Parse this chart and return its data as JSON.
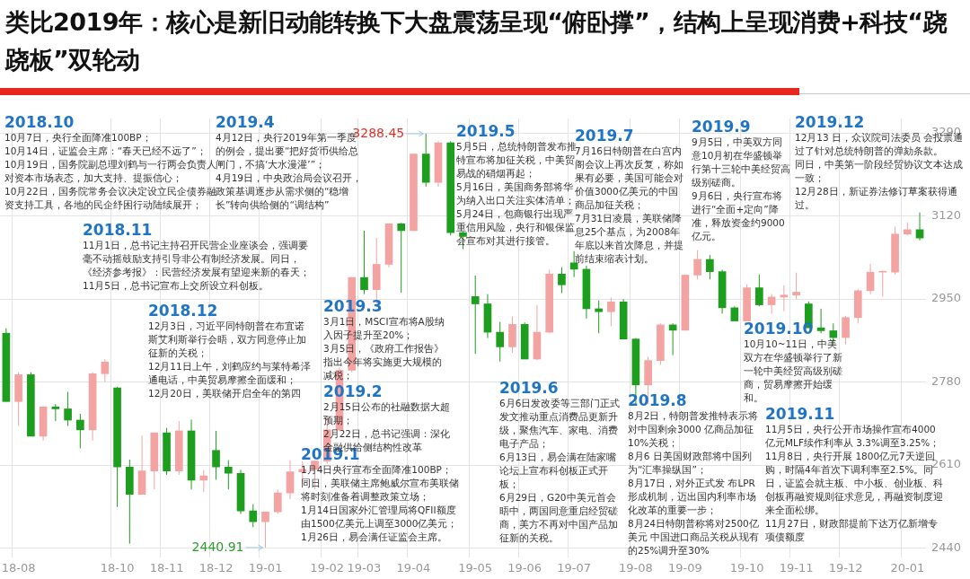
{
  "chart_data": {
    "type": "candlestick",
    "title": "类比2019年：核心是新旧动能转换下大盘震荡呈现“俯卧撑”，结构上呈现消费+科技“跷跷板”双轮动",
    "categories": [
      null,
      "18-08",
      null,
      null,
      null,
      null,
      null,
      null,
      null,
      "18-10",
      null,
      null,
      null,
      "18-11",
      null,
      null,
      null,
      "18-12",
      null,
      null,
      null,
      "19-01",
      null,
      null,
      null,
      null,
      "19-02",
      null,
      null,
      "19-03",
      null,
      null,
      null,
      "19-04",
      null,
      null,
      null,
      null,
      "19-05",
      null,
      null,
      null,
      "19-06",
      null,
      null,
      null,
      "19-07",
      null,
      null,
      null,
      null,
      "19-08",
      null,
      null,
      null,
      "19-09",
      null,
      null,
      null,
      null,
      "19-10",
      null,
      null,
      null,
      "19-11",
      null,
      null,
      null,
      "19-12",
      null,
      null,
      null,
      null,
      "20-01",
      null
    ],
    "ohlc": [
      [
        2880,
        2890,
        2740,
        2740
      ],
      [
        2740,
        2800,
        2690,
        2795
      ],
      [
        2795,
        2800,
        2669,
        2669
      ],
      [
        2669,
        2730,
        2660,
        2729
      ],
      [
        2729,
        2735,
        2700,
        2725
      ],
      [
        2725,
        2760,
        2690,
        2702
      ],
      [
        2702,
        2715,
        2644,
        2682
      ],
      [
        2682,
        2800,
        2660,
        2797
      ],
      [
        2797,
        2827,
        2780,
        2821
      ],
      [
        2768,
        2770,
        2524,
        2606
      ],
      [
        2606,
        2621,
        2449,
        2550
      ],
      [
        2550,
        2670,
        2550,
        2598
      ],
      [
        2598,
        2676,
        2560,
        2676
      ],
      [
        2676,
        2686,
        2590,
        2598
      ],
      [
        2598,
        2700,
        2590,
        2680
      ],
      [
        2680,
        2703,
        2560,
        2579
      ],
      [
        2579,
        2600,
        2555,
        2588
      ],
      [
        2640,
        2680,
        2580,
        2606
      ],
      [
        2606,
        2620,
        2560,
        2593
      ],
      [
        2593,
        2600,
        2510,
        2516
      ],
      [
        2516,
        2530,
        2483,
        2494
      ],
      [
        2494,
        2515,
        2440.91,
        2514
      ],
      [
        2514,
        2560,
        2510,
        2553
      ],
      [
        2553,
        2620,
        2540,
        2596
      ],
      [
        2596,
        2618,
        2570,
        2601
      ],
      [
        2601,
        2620,
        2560,
        2618
      ],
      [
        2618,
        2711,
        2613,
        2682
      ],
      [
        2682,
        2810,
        2680,
        2804
      ],
      [
        2804,
        2995,
        2800,
        2994
      ],
      [
        2994,
        3090,
        2960,
        2969
      ],
      [
        2969,
        3075,
        2940,
        3021
      ],
      [
        3021,
        3105,
        3015,
        3104
      ],
      [
        3104,
        3106,
        2963,
        3090
      ],
      [
        3090,
        3247,
        3090,
        3247
      ],
      [
        3247,
        3288.45,
        3180,
        3189
      ],
      [
        3189,
        3272,
        3180,
        3270
      ],
      [
        3270,
        3273,
        3080,
        3086
      ],
      [
        3086,
        3088,
        3052,
        3078
      ],
      [
        2955,
        2998,
        2838,
        2940
      ],
      [
        2940,
        2960,
        2870,
        2882
      ],
      [
        2882,
        2903,
        2822,
        2852
      ],
      [
        2852,
        2914,
        2840,
        2898
      ],
      [
        2898,
        2902,
        2827,
        2827
      ],
      [
        2827,
        2938,
        2825,
        2882
      ],
      [
        2882,
        3010,
        2880,
        3001
      ],
      [
        3001,
        3015,
        2962,
        2979
      ],
      [
        3024,
        3048,
        2995,
        3011
      ],
      [
        3011,
        3018,
        2910,
        2930
      ],
      [
        2930,
        2947,
        2880,
        2924
      ],
      [
        2924,
        2953,
        2894,
        2944
      ],
      [
        2944,
        2950,
        2867,
        2868
      ],
      [
        2868,
        2870,
        2733,
        2774
      ],
      [
        2774,
        2832,
        2735,
        2824
      ],
      [
        2824,
        2900,
        2815,
        2897
      ],
      [
        2897,
        2900,
        2835,
        2886
      ],
      [
        2886,
        3000,
        2886,
        2999
      ],
      [
        2999,
        3050,
        2990,
        3031
      ],
      [
        3031,
        3040,
        2990,
        3006
      ],
      [
        3006,
        3010,
        2920,
        2932
      ],
      [
        2932,
        2935,
        2905,
        2905
      ],
      [
        2905,
        2980,
        2905,
        2973
      ],
      [
        2973,
        3000,
        2935,
        2938
      ],
      [
        2938,
        2960,
        2920,
        2954
      ],
      [
        2954,
        2978,
        2925,
        2958
      ],
      [
        2958,
        3004,
        2950,
        2964
      ],
      [
        2940,
        2945,
        2891,
        2891
      ],
      [
        2891,
        2930,
        2880,
        2885
      ],
      [
        2885,
        2900,
        2857,
        2871
      ],
      [
        2871,
        2915,
        2857,
        2912
      ],
      [
        2912,
        2970,
        2900,
        2967
      ],
      [
        2967,
        3022,
        2960,
        3005
      ],
      [
        3005,
        3008,
        2955,
        3005
      ],
      [
        3005,
        3098,
        3000,
        3083
      ],
      [
        3083,
        3107,
        3080,
        3092
      ],
      [
        3092,
        3127,
        3070,
        3075
      ]
    ],
    "colors": [
      "#1e9e1e",
      "#f4a3a3",
      "#1e9e1e",
      "#f4a3a3",
      "#1e9e1e",
      "#1e9e1e",
      "#1e9e1e",
      "#f4a3a3",
      "#f4a3a3",
      "#1e9e1e",
      "#1e9e1e",
      "#f4a3a3",
      "#f4a3a3",
      "#1e9e1e",
      "#f4a3a3",
      "#1e9e1e",
      "#f4a3a3",
      "#1e9e1e",
      "#1e9e1e",
      "#1e9e1e",
      "#1e9e1e",
      "#f4a3a3",
      "#f4a3a3",
      "#f4a3a3",
      "#f4a3a3",
      "#f4a3a3",
      "#f4a3a3",
      "#f4a3a3",
      "#f4a3a3",
      "#1e9e1e",
      "#f4a3a3",
      "#f4a3a3",
      "#1e9e1e",
      "#f4a3a3",
      "#1e9e1e",
      "#f4a3a3",
      "#1e9e1e",
      "#1e9e1e",
      "#1e9e1e",
      "#1e9e1e",
      "#1e9e1e",
      "#f4a3a3",
      "#1e9e1e",
      "#f4a3a3",
      "#f4a3a3",
      "#1e9e1e",
      "#1e9e1e",
      "#1e9e1e",
      "#1e9e1e",
      "#f4a3a3",
      "#1e9e1e",
      "#1e9e1e",
      "#f4a3a3",
      "#f4a3a3",
      "#1e9e1e",
      "#f4a3a3",
      "#f4a3a3",
      "#1e9e1e",
      "#1e9e1e",
      "#1e9e1e",
      "#f4a3a3",
      "#1e9e1e",
      "#f4a3a3",
      "#f4a3a3",
      "#f4a3a3",
      "#1e9e1e",
      "#1e9e1e",
      "#1e9e1e",
      "#f4a3a3",
      "#f4a3a3",
      "#f4a3a3",
      "#f4a3a3",
      "#f4a3a3",
      "#f4a3a3",
      "#1e9e1e"
    ],
    "ylim": [
      2420,
      3320
    ],
    "yticks": [
      2440,
      2610,
      2780,
      2950,
      3120,
      3290
    ],
    "grid": true,
    "annotations": [
      "2018.10",
      "10月7日，央行全面降准100BP；",
      "10月14日，证监会主席：“春天已经不远了”；",
      "10月19日，国务院副总理刘鹤与一行两会负责人对资本市场表态，加大支持、提振信心；",
      "10月22日，国务院常务会议决定设立民企债券融资支持工具，各地的民企纾困行动陆续展开；",
      "2018.11",
      "11月1日，总书记主持召开民营企业座谈会，强调要毫不动摇鼓励支持引导非公有制经济发展。同日，《经济参考报》：民营经济发展有望迎来新的春天；",
      "11月5日，总书记宣布上交所设立科创板。",
      "2018.12",
      "12月3日，习近平同特朗普在布宜诺斯艾利斯举行会晤，双方同意停止加征新的关税；",
      "12月11日上午，刘鹤应约与莱特希泽通电话，中美贸易摩擦全面缓和；",
      "12月20日，美联储开启全年的第四",
      "2019.1",
      "1月4日央行宣布全面降准100BP；",
      "同日，美联储主席鲍威尔宣布美联储将时刻准备着调整政策立场；",
      "1月14日国家外汇管理局将QFII额度由1500亿美元上调至3000亿美元；",
      "1月26日，易会满任证监会主席。",
      "2019.2",
      "2月15日公布的社融数据大超预期；",
      "2月22日，总书记强调：深化金融供给侧结构性改革",
      "2019.3",
      "3月1日，MSCI宣布将A股纳入因子提升至20%；",
      "3月5日，《政府工作报告》指出今年将实施更大规模的减税；",
      "2019.4",
      "4月12日，央行2019年第一季度的例会，提出要“把好货币供给总闸门，不搞‘大水漫灌’”；",
      "4月19日，中央政治局会议召开，政策基调逐步从需求侧的“稳增长”转向供给侧的“调结构”",
      "2019.5",
      "5月5日，总统特朗普发布推特宣布将加征关税，中美贸易战的硝烟再起；",
      "5月16日，美国商务部将华为纳入出口关注实体清单；",
      "5月24日，包商银行出现严重信用风险，央行和银保监会宣布对其进行接管。",
      "2019.6",
      "6月6日发改委等三部门正式发文推动重点消费品更新升级，聚焦汽车、家电、消费电子产品；",
      "6月13日，易会满在陆家嘴论坛上宣布科创板正式开板；",
      "6月29日，G20中美元首会晤中，两国同意重启经贸磋商，美方不再对中国产品加征新的关税。",
      "2019.7",
      "7月16日特朗普在白宫内阁会议上再次反复，称如果有必要，美国可能会对价值3000亿美元的中国商品加征关税；",
      "7月31日凌晨，美联储降息25个基点，为2008年年底以来首次降息，并提前结束缩表计划。",
      "2019.8",
      "8月2日，特朗普发推特表示将对中国剩余3000 亿商品加征10%关税；",
      "8月6 日美国财政部将中国列为“汇率操纵国”；",
      "8月17日，对外正式发 布LPR形成机制，迈出国内利率市场化改革的重要一步；",
      "8月24日特朗普称将对2500亿美元 中国进口商品关税从现有的25%调升至30%",
      "2019.9",
      "9月5日，中美双方同意10月初在华盛顿举行第十三轮中美经贸高级别磋商。",
      "9月6日，央行宣布将进行“全面+定向”降准，释放资金约9000亿元。",
      "2019.10",
      "10月10~11日，中美双方在华盛顿举行了新一轮中美经贸高级别磋商，贸易摩擦开始缓和。",
      "2019.11",
      "11月5日，央行公开市场操作宣布4000亿元MLF续作利率从 3.3%调至3.25%；",
      "11月8日，央行开展 1800亿元7天逆回购，时隔4年首次下调利率至2.5%。同日，证监会就主板、中小板、创业板、科创板再融资规则征求意见，再融资制度迎来全面松绑。",
      "11月27日，财政部提前下达万亿新增专项债额度",
      "2019.12",
      "12月13 日，众议院司法委员 会投票通过了针对总统特朗普的弹劾条款。",
      "同日，中美第一阶段经贸协议文本达成一致；",
      "12月28日，新证券法修订草案获得通过。",
      "3288.45",
      "2440.91"
    ]
  }
}
